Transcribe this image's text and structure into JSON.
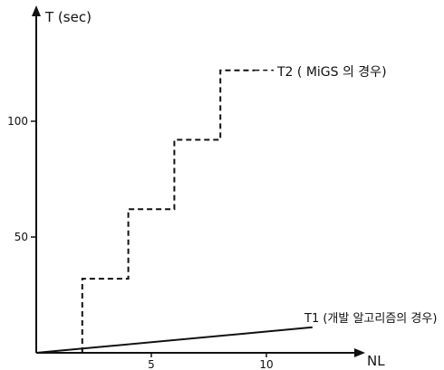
{
  "chart_data": {
    "type": "line",
    "title": "",
    "xlabel": "NL",
    "ylabel": "T (sec)",
    "xlim": [
      0,
      15
    ],
    "ylim": [
      0,
      140
    ],
    "x_ticks": [
      5,
      10
    ],
    "y_ticks": [
      50,
      100
    ],
    "series": [
      {
        "name": "T2 ( MiGS 의 경우)",
        "style": "dashed-step",
        "x": [
          2,
          2,
          4,
          4,
          6,
          6,
          8,
          8,
          9.5
        ],
        "y": [
          0,
          32,
          32,
          62,
          62,
          92,
          92,
          122,
          122
        ]
      },
      {
        "name": "T1 (개발 알고리즘의 경우)",
        "style": "solid",
        "x": [
          0,
          12
        ],
        "y": [
          0,
          11
        ]
      }
    ]
  }
}
